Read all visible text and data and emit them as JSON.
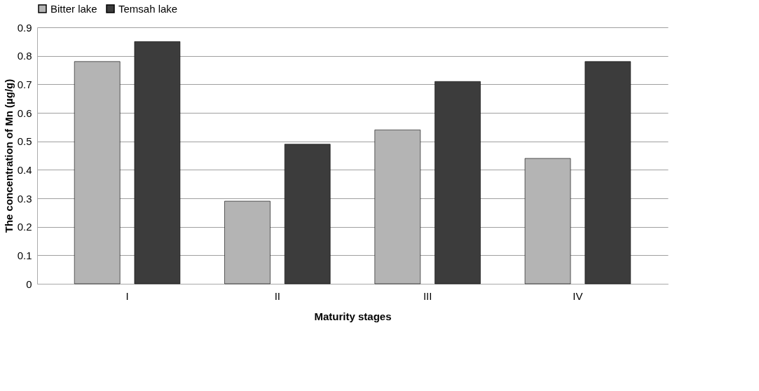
{
  "chart_data": {
    "type": "bar",
    "xlabel": "Maturity stages",
    "ylabel": "The concentration of Mn (µg/g)",
    "categories": [
      "I",
      "II",
      "III",
      "IV"
    ],
    "series": [
      {
        "name": "Bitter lake",
        "color": "#b4b4b4",
        "values": [
          0.78,
          0.29,
          0.54,
          0.44
        ]
      },
      {
        "name": "Temsah lake",
        "color": "#3c3c3c",
        "values": [
          0.85,
          0.49,
          0.71,
          0.78
        ]
      }
    ],
    "ylim": [
      0,
      0.9
    ],
    "yticks": [
      0,
      0.1,
      0.2,
      0.3,
      0.4,
      0.5,
      0.6,
      0.7,
      0.8,
      0.9
    ],
    "grid": "y",
    "legend": "top"
  }
}
